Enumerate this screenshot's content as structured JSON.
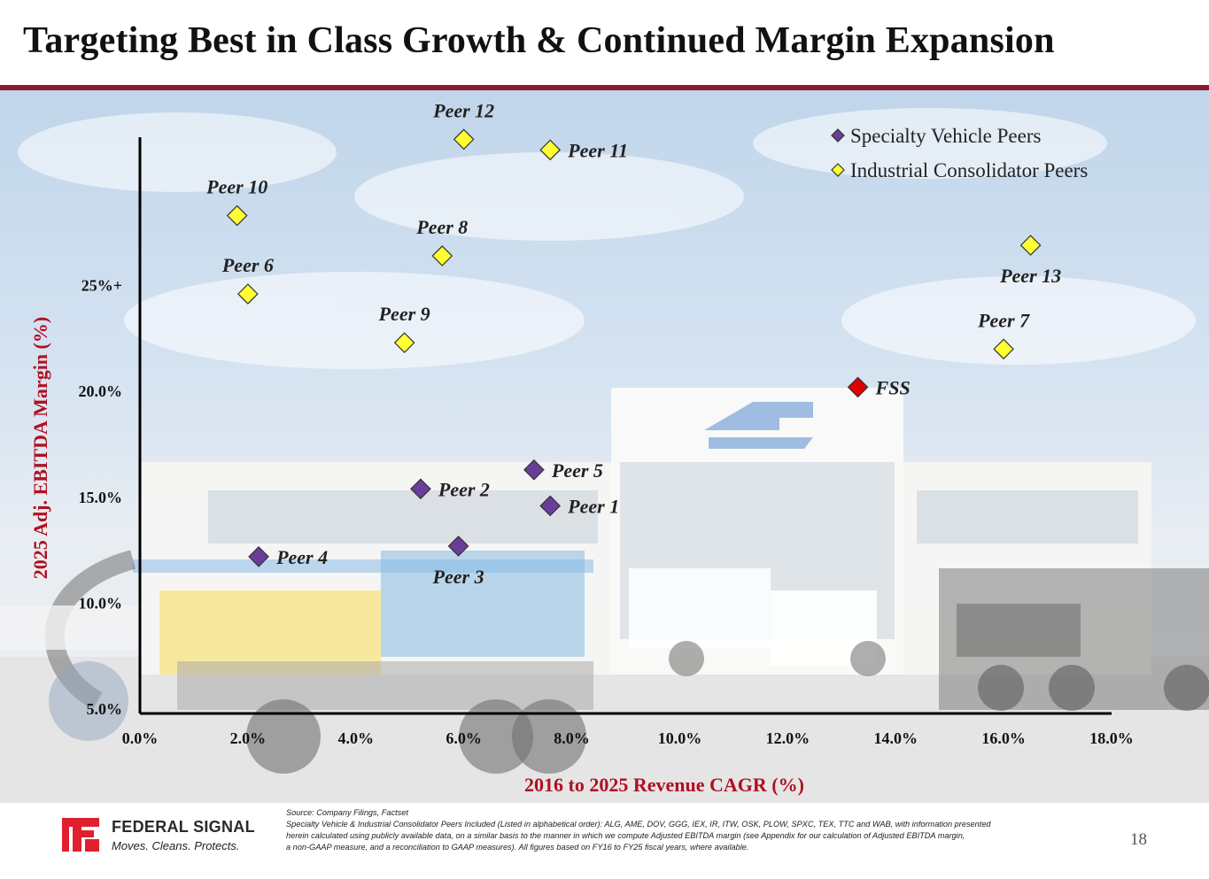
{
  "page": {
    "title": "Targeting Best in Class Growth & Continued Margin Expansion",
    "page_number": "18",
    "accent_color": "#8b1a2b"
  },
  "footer": {
    "logo_name": "FEDERAL SIGNAL",
    "logo_tagline": "Moves. Cleans. Protects.",
    "source": "Source: Company Filings, Factset",
    "note_lines": [
      "Specialty Vehicle & Industrial Consolidator Peers Included (Listed in alphabetical order): ALG, AME, DOV, GGG, IEX, IR, ITW, OSK, PLOW, SPXC, TEX, TTC and WAB, with information presented",
      "herein calculated using publicly available data, on a similar basis to the manner in which we compute Adjusted EBITDA margin (see Appendix for our calculation of Adjusted EBITDA margin,",
      "a non-GAAP measure, and a reconciliation to GAAP measures). All figures based on FY16 to FY25 fiscal years, where available."
    ]
  },
  "chart_data": {
    "type": "scatter",
    "xlabel": "2016 to 2025 Revenue CAGR (%)",
    "ylabel": "2025 Adj. EBITDA Margin (%)",
    "x_ticks": [
      "0.0%",
      "2.0%",
      "4.0%",
      "6.0%",
      "8.0%",
      "10.0%",
      "12.0%",
      "14.0%",
      "16.0%",
      "18.0%"
    ],
    "y_ticks": [
      {
        "value": 5.0,
        "label": "5.0%"
      },
      {
        "value": 10.0,
        "label": "10.0%"
      },
      {
        "value": 15.0,
        "label": "15.0%"
      },
      {
        "value": 20.0,
        "label": "20.0%"
      },
      {
        "value": 25.0,
        "label": "25%+"
      }
    ],
    "xlim": [
      0,
      18
    ],
    "ylim": [
      4.8,
      32
    ],
    "grid": false,
    "legend_position": "top-right",
    "series": [
      {
        "name": "Specialty Vehicle Peers",
        "color": "#6a3d9a",
        "points": [
          {
            "label": "Peer 1",
            "x": 7.6,
            "y": 14.6,
            "label_pos": "right"
          },
          {
            "label": "Peer 2",
            "x": 5.2,
            "y": 15.4,
            "label_pos": "right"
          },
          {
            "label": "Peer 3",
            "x": 5.9,
            "y": 12.7,
            "label_pos": "below"
          },
          {
            "label": "Peer 4",
            "x": 2.2,
            "y": 12.2,
            "label_pos": "right"
          },
          {
            "label": "Peer 5",
            "x": 7.3,
            "y": 16.3,
            "label_pos": "right"
          }
        ]
      },
      {
        "name": "Industrial Consolidator Peers",
        "color": "#ffff33",
        "points": [
          {
            "label": "Peer 6",
            "x": 2.0,
            "y": 24.6,
            "label_pos": "above"
          },
          {
            "label": "Peer 7",
            "x": 16.0,
            "y": 22.0,
            "label_pos": "above"
          },
          {
            "label": "Peer 8",
            "x": 5.6,
            "y": 26.4,
            "label_pos": "above"
          },
          {
            "label": "Peer 9",
            "x": 4.9,
            "y": 22.3,
            "label_pos": "above"
          },
          {
            "label": "Peer 10",
            "x": 1.8,
            "y": 28.3,
            "label_pos": "above"
          },
          {
            "label": "Peer 11",
            "x": 7.6,
            "y": 31.4,
            "label_pos": "right"
          },
          {
            "label": "Peer 12",
            "x": 6.0,
            "y": 31.9,
            "label_pos": "above"
          },
          {
            "label": "Peer 13",
            "x": 16.5,
            "y": 26.9,
            "label_pos": "below"
          }
        ]
      },
      {
        "name": "FSS",
        "color": "#e00000",
        "points": [
          {
            "label": "FSS",
            "x": 13.3,
            "y": 20.2,
            "label_pos": "right"
          }
        ]
      }
    ],
    "legend_entries": [
      {
        "name": "Specialty Vehicle Peers",
        "color": "#6a3d9a"
      },
      {
        "name": "Industrial Consolidator Peers",
        "color": "#ffff33"
      }
    ]
  }
}
